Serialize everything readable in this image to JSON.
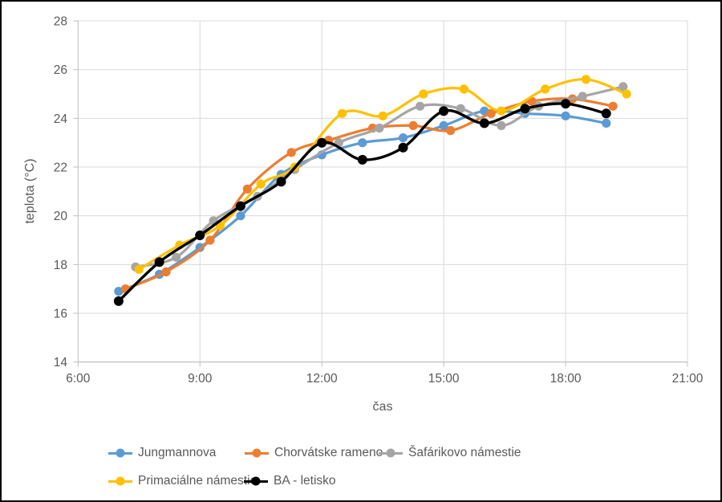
{
  "chart_data": {
    "type": "line",
    "xlabel": "čas",
    "ylabel": "teplota (°C)",
    "x_ticks": [
      "6:00",
      "9:00",
      "12:00",
      "15:00",
      "18:00",
      "21:00"
    ],
    "x_range_hours": [
      6,
      21
    ],
    "y_ticks": [
      14,
      16,
      18,
      20,
      22,
      24,
      26,
      28
    ],
    "y_range": [
      14,
      28
    ],
    "grid": "on",
    "legend_position": "bottom",
    "marker_style": "circle",
    "line_style": "smooth",
    "colors": {
      "gridline": "#D9D9D9",
      "axis_line": "#BFBFBF",
      "axis_text": "#595959",
      "frame": "#000000"
    },
    "series": [
      {
        "name": "Jungmannova",
        "color": "#5B9BD5",
        "points": [
          [
            "7:00",
            16.9
          ],
          [
            "8:00",
            17.6
          ],
          [
            "9:00",
            18.7
          ],
          [
            "10:00",
            20.0
          ],
          [
            "11:00",
            21.7
          ],
          [
            "12:00",
            22.5
          ],
          [
            "13:00",
            23.0
          ],
          [
            "14:00",
            23.2
          ],
          [
            "15:00",
            23.7
          ],
          [
            "16:00",
            24.3
          ],
          [
            "17:00",
            24.2
          ],
          [
            "18:00",
            24.1
          ],
          [
            "19:00",
            23.8
          ]
        ]
      },
      {
        "name": "Chorvátske rameno",
        "color": "#ED7D31",
        "points": [
          [
            "7:10",
            17.0
          ],
          [
            "8:10",
            17.7
          ],
          [
            "9:15",
            19.0
          ],
          [
            "10:10",
            21.1
          ],
          [
            "11:15",
            22.6
          ],
          [
            "12:10",
            23.1
          ],
          [
            "13:15",
            23.6
          ],
          [
            "14:15",
            23.7
          ],
          [
            "15:10",
            23.5
          ],
          [
            "16:10",
            24.2
          ],
          [
            "17:10",
            24.7
          ],
          [
            "18:10",
            24.8
          ],
          [
            "19:10",
            24.5
          ]
        ]
      },
      {
        "name": "Šafárikovo námestie",
        "color": "#A5A5A5",
        "points": [
          [
            "7:25",
            17.9
          ],
          [
            "8:25",
            18.3
          ],
          [
            "9:20",
            19.8
          ],
          [
            "10:25",
            20.8
          ],
          [
            "11:20",
            21.9
          ],
          [
            "12:25",
            23.0
          ],
          [
            "13:25",
            23.6
          ],
          [
            "14:25",
            24.5
          ],
          [
            "15:25",
            24.4
          ],
          [
            "16:25",
            23.7
          ],
          [
            "17:20",
            24.5
          ],
          [
            "18:25",
            24.9
          ],
          [
            "19:25",
            25.3
          ]
        ]
      },
      {
        "name": "Primaciálne námestie",
        "color": "#FFC000",
        "points": [
          [
            "7:30",
            17.8
          ],
          [
            "8:30",
            18.8
          ],
          [
            "9:30",
            19.6
          ],
          [
            "10:30",
            21.3
          ],
          [
            "11:20",
            22.0
          ],
          [
            "12:30",
            24.2
          ],
          [
            "13:30",
            24.1
          ],
          [
            "14:30",
            25.0
          ],
          [
            "15:30",
            25.2
          ],
          [
            "16:25",
            24.3
          ],
          [
            "17:30",
            25.2
          ],
          [
            "18:30",
            25.6
          ],
          [
            "19:30",
            25.0
          ]
        ]
      },
      {
        "name": "BA - letisko",
        "color": "#000000",
        "points": [
          [
            "7:00",
            16.5
          ],
          [
            "8:00",
            18.1
          ],
          [
            "9:00",
            19.2
          ],
          [
            "10:00",
            20.4
          ],
          [
            "11:00",
            21.4
          ],
          [
            "12:00",
            23.0
          ],
          [
            "13:00",
            22.3
          ],
          [
            "14:00",
            22.8
          ],
          [
            "15:00",
            24.3
          ],
          [
            "16:00",
            23.8
          ],
          [
            "17:00",
            24.4
          ],
          [
            "18:00",
            24.6
          ],
          [
            "19:00",
            24.2
          ]
        ]
      }
    ],
    "legend_rows": [
      [
        0,
        1,
        2
      ],
      [
        3,
        4
      ]
    ]
  }
}
